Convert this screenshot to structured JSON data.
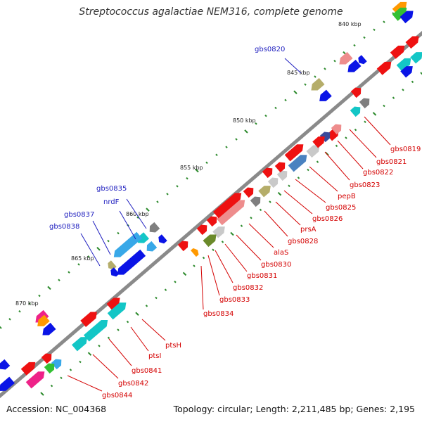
{
  "title": "Streptococcus agalactiae NEM316, complete genome",
  "footer": {
    "accession": "Accession: NC_004368",
    "summary": "Topology: circular; Length: 2,211,485 bp; Genes: 2,195"
  },
  "colors": {
    "backbone": "#8a8a8a",
    "tick": "#2e8b2e",
    "ruler_text": "#222222",
    "forward_label": "#1f1fbf",
    "reverse_label": "#d40000",
    "cds_red": "#ee1111",
    "cds_blue": "#0a14e6",
    "cds_cyan": "#13c6c6",
    "cds_skyblue": "#38a8e8",
    "cds_steel": "#4a82c0",
    "cds_pink": "#ee8d8d",
    "cds_khaki": "#b5ad6a",
    "cds_gray": "#7f7f7f",
    "cds_lightgray": "#c9c9c9",
    "cds_olive": "#6b8a2a",
    "cds_green": "#33c033",
    "cds_orange": "#ff9900",
    "cds_magenta": "#ee2288",
    "cds_navy": "#3a4a9a"
  },
  "ruler_labels": [
    "840 kbp",
    "845 kbp",
    "850 kbp",
    "855 kbp",
    "860 kbp",
    "865 kbp",
    "870 kbp"
  ],
  "forward_gene_labels": [
    "gbs0820",
    "gbs0835",
    "nrdF",
    "gbs0837",
    "gbs0838"
  ],
  "reverse_gene_labels": [
    "gbs0819",
    "gbs0821",
    "gbs0822",
    "gbs0823",
    "pepB",
    "gbs0825",
    "gbs0826",
    "prsA",
    "gbs0828",
    "alaS",
    "gbs0830",
    "gbs0831",
    "gbs0832",
    "gbs0833",
    "gbs0834",
    "ptsH",
    "ptsI",
    "gbs0841",
    "gbs0842",
    "gbs0844"
  ]
}
